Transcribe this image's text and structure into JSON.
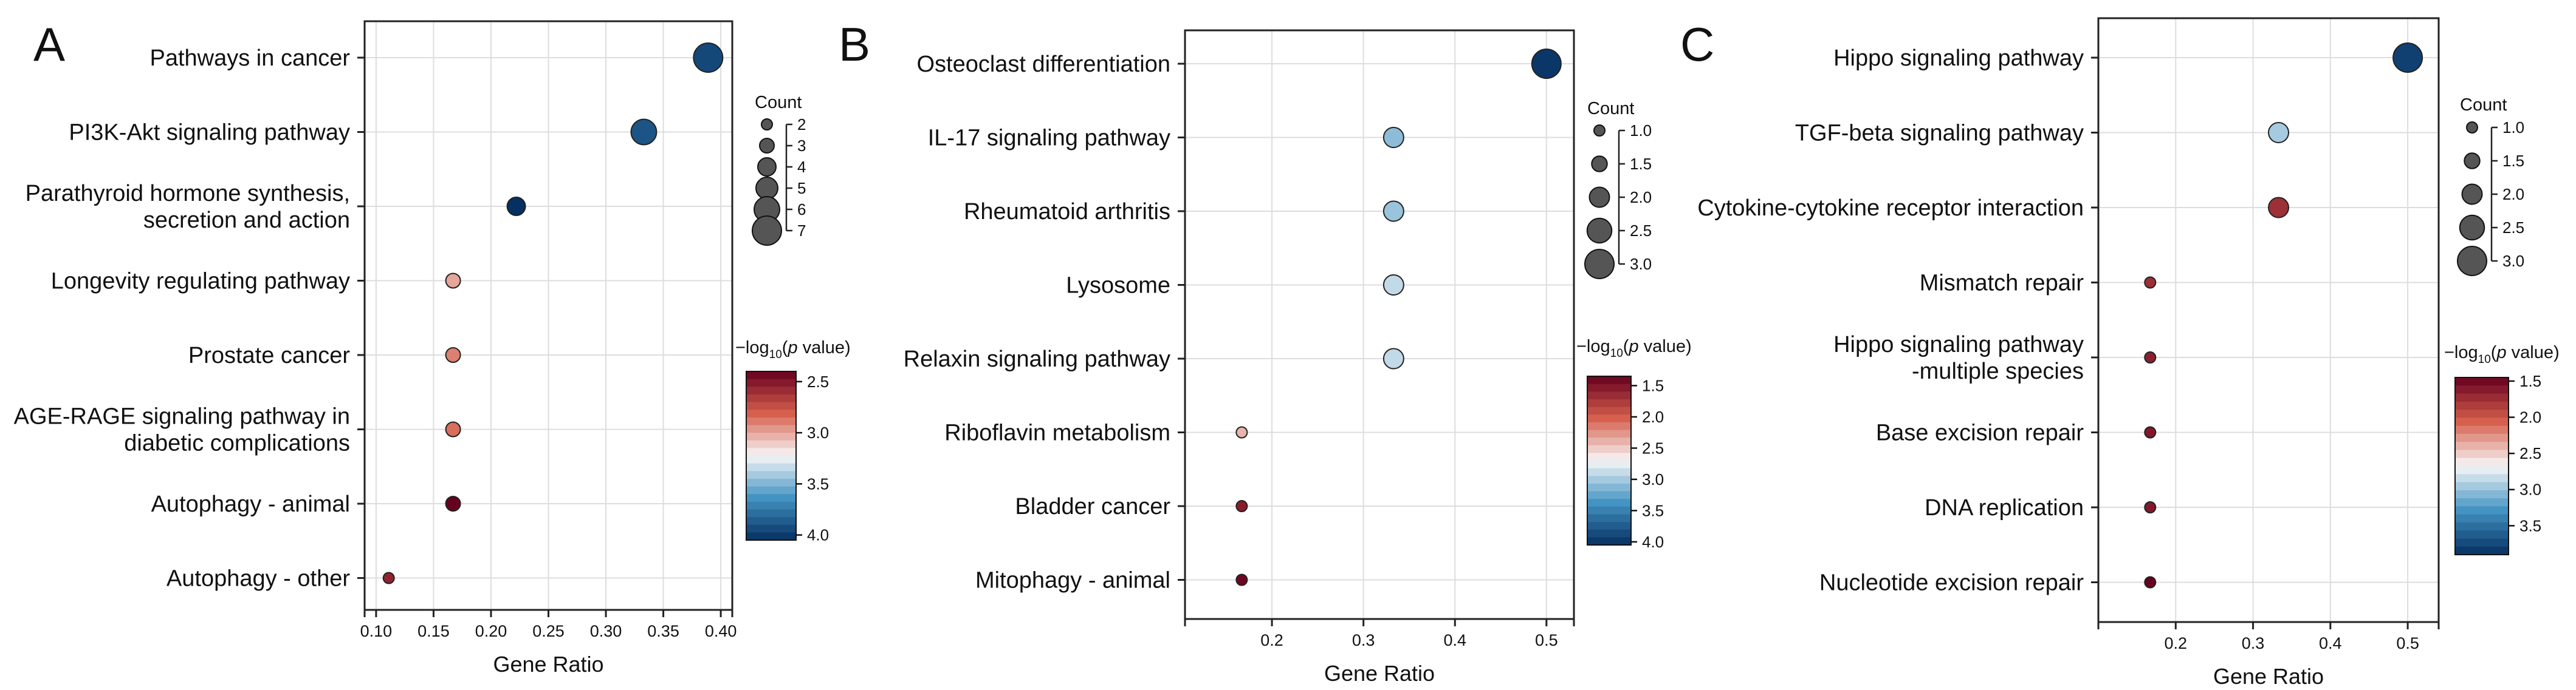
{
  "colors": {
    "low": "#67001f",
    "mid_low": "#d6604d",
    "center": "#f7f7f7",
    "mid_high": "#4393c3",
    "high": "#053061",
    "grid": "#dddddd",
    "frame": "#222222"
  },
  "chart_data": [
    {
      "panel_letter": "A",
      "type": "scatter",
      "xlabel": "Gene Ratio",
      "xlim": [
        0.09,
        0.41
      ],
      "xticks": [
        0.1,
        0.15,
        0.2,
        0.25,
        0.3,
        0.35,
        0.4
      ],
      "xtick_labels": [
        "0.10",
        "0.15",
        "0.20",
        "0.25",
        "0.30",
        "0.35",
        "0.40"
      ],
      "points": [
        {
          "label": [
            "Pathways in cancer"
          ],
          "gene_ratio": 0.389,
          "count": 7,
          "neg_log10_p": 3.95
        },
        {
          "label": [
            "PI3K-Akt signaling pathway"
          ],
          "gene_ratio": 0.333,
          "count": 6,
          "neg_log10_p": 3.9
        },
        {
          "label": [
            "Parathyroid hormone synthesis,",
            "secretion and action"
          ],
          "gene_ratio": 0.222,
          "count": 4,
          "neg_log10_p": 4.05
        },
        {
          "label": [
            "Longevity regulating pathway"
          ],
          "gene_ratio": 0.167,
          "count": 3,
          "neg_log10_p": 3.0
        },
        {
          "label": [
            "Prostate cancer"
          ],
          "gene_ratio": 0.167,
          "count": 3,
          "neg_log10_p": 2.9
        },
        {
          "label": [
            "AGE-RAGE signaling pathway in",
            "diabetic complications"
          ],
          "gene_ratio": 0.167,
          "count": 3,
          "neg_log10_p": 2.85
        },
        {
          "label": [
            "Autophagy - animal"
          ],
          "gene_ratio": 0.167,
          "count": 3,
          "neg_log10_p": 2.4
        },
        {
          "label": [
            "Autophagy - other"
          ],
          "gene_ratio": 0.111,
          "count": 2,
          "neg_log10_p": 2.55
        }
      ],
      "size_legend": {
        "title": "Count",
        "values": [
          2,
          3,
          4,
          5,
          6,
          7
        ],
        "labels": [
          "2",
          "3",
          "4",
          "5",
          "6",
          "7"
        ],
        "range": [
          2,
          7
        ]
      },
      "color_legend": {
        "title_prefix": "−log",
        "title_sub": "10",
        "title_open": "(",
        "title_italic": "p",
        "title_suffix": " value)",
        "range": [
          2.4,
          4.05
        ],
        "ticks": [
          2.5,
          3.0,
          3.5,
          4.0
        ],
        "tick_labels": [
          "2.5",
          "3.0",
          "3.5",
          "4.0"
        ]
      }
    },
    {
      "panel_letter": "B",
      "type": "scatter",
      "xlabel": "Gene Ratio",
      "xlim": [
        0.105,
        0.53
      ],
      "xticks": [
        0.2,
        0.3,
        0.4,
        0.5
      ],
      "xtick_labels": [
        "0.2",
        "0.3",
        "0.4",
        "0.5"
      ],
      "points": [
        {
          "label": [
            "Osteoclast differentiation"
          ],
          "gene_ratio": 0.5,
          "count": 3.0,
          "neg_log10_p": 4.0
        },
        {
          "label": [
            "IL-17 signaling pathway"
          ],
          "gene_ratio": 0.333,
          "count": 2.0,
          "neg_log10_p": 3.1
        },
        {
          "label": [
            "Rheumatoid arthritis"
          ],
          "gene_ratio": 0.333,
          "count": 2.0,
          "neg_log10_p": 3.05
        },
        {
          "label": [
            "Lysosome"
          ],
          "gene_ratio": 0.333,
          "count": 2.0,
          "neg_log10_p": 2.9
        },
        {
          "label": [
            "Relaxin signaling pathway"
          ],
          "gene_ratio": 0.333,
          "count": 2.0,
          "neg_log10_p": 2.9
        },
        {
          "label": [
            "Riboflavin metabolism"
          ],
          "gene_ratio": 0.167,
          "count": 1.0,
          "neg_log10_p": 2.4
        },
        {
          "label": [
            "Bladder cancer"
          ],
          "gene_ratio": 0.167,
          "count": 1.0,
          "neg_log10_p": 1.55
        },
        {
          "label": [
            "Mitophagy - animal"
          ],
          "gene_ratio": 0.167,
          "count": 1.0,
          "neg_log10_p": 1.4
        }
      ],
      "size_legend": {
        "title": "Count",
        "values": [
          1.0,
          1.5,
          2.0,
          2.5,
          3.0
        ],
        "labels": [
          "1.0",
          "1.5",
          "2.0",
          "2.5",
          "3.0"
        ],
        "range": [
          1,
          3
        ]
      },
      "color_legend": {
        "title_prefix": "−log",
        "title_sub": "10",
        "title_open": "(",
        "title_italic": "p",
        "title_suffix": " value)",
        "range": [
          1.35,
          4.05
        ],
        "ticks": [
          1.5,
          2.0,
          2.5,
          3.0,
          3.5,
          4.0
        ],
        "tick_labels": [
          "1.5",
          "2.0",
          "2.5",
          "3.0",
          "3.5",
          "4.0"
        ]
      }
    },
    {
      "panel_letter": "C",
      "type": "scatter",
      "xlabel": "Gene Ratio",
      "xlim": [
        0.1,
        0.54
      ],
      "xticks": [
        0.2,
        0.3,
        0.4,
        0.5
      ],
      "xtick_labels": [
        "0.2",
        "0.3",
        "0.4",
        "0.5"
      ],
      "points": [
        {
          "label": [
            "Hippo signaling pathway"
          ],
          "gene_ratio": 0.5,
          "count": 3.0,
          "neg_log10_p": 3.8
        },
        {
          "label": [
            "TGF-beta signaling pathway"
          ],
          "gene_ratio": 0.333,
          "count": 2.0,
          "neg_log10_p": 2.95
        },
        {
          "label": [
            "Cytokine-cytokine receptor interaction"
          ],
          "gene_ratio": 0.333,
          "count": 2.0,
          "neg_log10_p": 1.75
        },
        {
          "label": [
            "Mismatch repair"
          ],
          "gene_ratio": 0.167,
          "count": 1.0,
          "neg_log10_p": 1.75
        },
        {
          "label": [
            "Hippo signaling pathway",
            "-multiple species"
          ],
          "gene_ratio": 0.167,
          "count": 1.0,
          "neg_log10_p": 1.65
        },
        {
          "label": [
            "Base excision repair"
          ],
          "gene_ratio": 0.167,
          "count": 1.0,
          "neg_log10_p": 1.6
        },
        {
          "label": [
            "DNA replication"
          ],
          "gene_ratio": 0.167,
          "count": 1.0,
          "neg_log10_p": 1.6
        },
        {
          "label": [
            "Nucleotide excision repair"
          ],
          "gene_ratio": 0.167,
          "count": 1.0,
          "neg_log10_p": 1.45
        }
      ],
      "size_legend": {
        "title": "Count",
        "values": [
          1.0,
          1.5,
          2.0,
          2.5,
          3.0
        ],
        "labels": [
          "1.0",
          "1.5",
          "2.0",
          "2.5",
          "3.0"
        ],
        "range": [
          1,
          3
        ]
      },
      "color_legend": {
        "title_prefix": "−log",
        "title_sub": "10",
        "title_open": "(",
        "title_italic": "p",
        "title_suffix": " value)",
        "range": [
          1.45,
          3.9
        ],
        "ticks": [
          1.5,
          2.0,
          2.5,
          3.0,
          3.5
        ],
        "tick_labels": [
          "1.5",
          "2.0",
          "2.5",
          "3.0",
          "3.5"
        ]
      }
    }
  ]
}
